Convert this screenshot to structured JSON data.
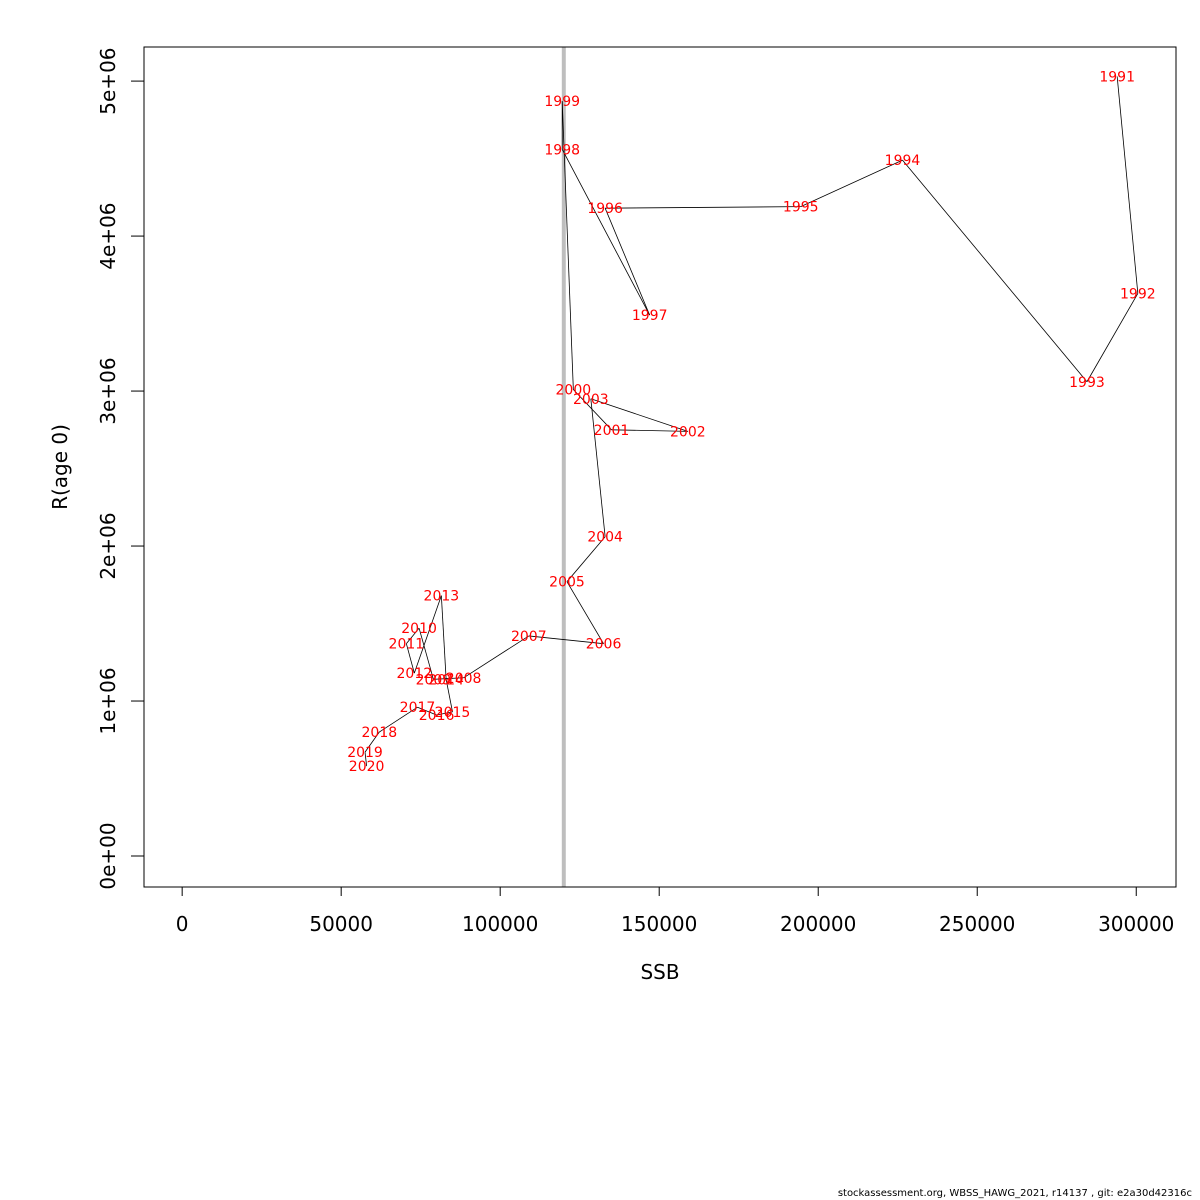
{
  "chart_data": {
    "type": "scatter",
    "xlabel": "SSB",
    "ylabel": "R(age 0)",
    "xlim": [
      -12000,
      312500
    ],
    "ylim": [
      -200000,
      5220000
    ],
    "x_ticks": [
      0,
      50000,
      100000,
      150000,
      200000,
      250000,
      300000
    ],
    "x_tick_labels": [
      "0",
      "50000",
      "100000",
      "150000",
      "200000",
      "250000",
      "300000"
    ],
    "y_ticks": [
      0,
      1000000,
      2000000,
      3000000,
      4000000,
      5000000
    ],
    "y_tick_labels": [
      "0e+00",
      "1e+06",
      "2e+06",
      "3e+06",
      "4e+06",
      "5e+06"
    ],
    "reference_line": {
      "orientation": "vertical",
      "x": 120000,
      "color": "#bebebe"
    },
    "line_color": "#000000",
    "label_color": "#ff0000",
    "points": [
      {
        "year": "1991",
        "ssb": 294000,
        "r": 5030000
      },
      {
        "year": "1992",
        "ssb": 300500,
        "r": 3630000
      },
      {
        "year": "1993",
        "ssb": 284500,
        "r": 3060000
      },
      {
        "year": "1994",
        "ssb": 226500,
        "r": 4490000
      },
      {
        "year": "1995",
        "ssb": 194500,
        "r": 4190000
      },
      {
        "year": "1996",
        "ssb": 133000,
        "r": 4180000
      },
      {
        "year": "1997",
        "ssb": 147000,
        "r": 3490000
      },
      {
        "year": "1998",
        "ssb": 119500,
        "r": 4560000
      },
      {
        "year": "1999",
        "ssb": 119500,
        "r": 4870000
      },
      {
        "year": "2000",
        "ssb": 123000,
        "r": 3010000
      },
      {
        "year": "2001",
        "ssb": 135000,
        "r": 2750000
      },
      {
        "year": "2002",
        "ssb": 159000,
        "r": 2740000
      },
      {
        "year": "2003",
        "ssb": 128500,
        "r": 2950000
      },
      {
        "year": "2004",
        "ssb": 133000,
        "r": 2060000
      },
      {
        "year": "2005",
        "ssb": 121000,
        "r": 1770000
      },
      {
        "year": "2006",
        "ssb": 132500,
        "r": 1370000
      },
      {
        "year": "2007",
        "ssb": 109000,
        "r": 1420000
      },
      {
        "year": "2008",
        "ssb": 88500,
        "r": 1150000
      },
      {
        "year": "2009",
        "ssb": 79000,
        "r": 1140000
      },
      {
        "year": "2010",
        "ssb": 74500,
        "r": 1470000
      },
      {
        "year": "2011",
        "ssb": 70500,
        "r": 1370000
      },
      {
        "year": "2012",
        "ssb": 73000,
        "r": 1180000
      },
      {
        "year": "2013",
        "ssb": 81500,
        "r": 1680000
      },
      {
        "year": "2014",
        "ssb": 83000,
        "r": 1140000
      },
      {
        "year": "2015",
        "ssb": 85000,
        "r": 930000
      },
      {
        "year": "2016",
        "ssb": 80000,
        "r": 910000
      },
      {
        "year": "2017",
        "ssb": 74000,
        "r": 960000
      },
      {
        "year": "2018",
        "ssb": 62000,
        "r": 800000
      },
      {
        "year": "2019",
        "ssb": 57500,
        "r": 670000
      },
      {
        "year": "2020",
        "ssb": 58000,
        "r": 580000
      }
    ]
  },
  "footer_text": "stockassessment.org, WBSS_HAWG_2021, r14137 , git: e2a30d42316c"
}
